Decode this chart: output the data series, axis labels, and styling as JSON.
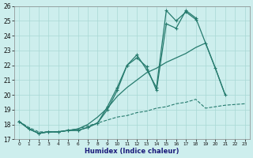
{
  "color": "#267b6e",
  "bg_color": "#cdeeed",
  "grid_color": "#a8d8d4",
  "xlabel": "Humidex (Indice chaleur)",
  "ylim": [
    17,
    26
  ],
  "xlim": [
    -0.5,
    23.5
  ],
  "yticks": [
    17,
    18,
    19,
    20,
    21,
    22,
    23,
    24,
    25,
    26
  ],
  "xticks": [
    0,
    1,
    2,
    3,
    4,
    5,
    6,
    7,
    8,
    9,
    10,
    11,
    12,
    13,
    14,
    15,
    16,
    17,
    18,
    19,
    20,
    21,
    22,
    23
  ],
  "s1_x": [
    0,
    1,
    2,
    3,
    4,
    5,
    6,
    7,
    8,
    9,
    10,
    11,
    12,
    13,
    14,
    15,
    16,
    17,
    18
  ],
  "s1_y": [
    18.2,
    17.7,
    17.4,
    17.5,
    17.5,
    17.6,
    17.6,
    17.8,
    18.1,
    19.2,
    20.5,
    22.0,
    22.7,
    21.7,
    20.5,
    25.7,
    25.0,
    25.6,
    25.1
  ],
  "s2_x": [
    0,
    1,
    2,
    3,
    4,
    5,
    6,
    7,
    8,
    9,
    10,
    11,
    12,
    13,
    14,
    15,
    16,
    17,
    18,
    19,
    20,
    21
  ],
  "s2_y": [
    18.2,
    17.7,
    17.4,
    17.5,
    17.5,
    17.6,
    17.6,
    17.8,
    18.1,
    19.0,
    20.3,
    22.0,
    22.5,
    21.9,
    20.3,
    24.8,
    24.5,
    25.7,
    25.2,
    23.5,
    21.8,
    20.0
  ],
  "s3_x": [
    0,
    1,
    2,
    3,
    4,
    5,
    6,
    7,
    8,
    9,
    10,
    11,
    12,
    13,
    14,
    15,
    16,
    17,
    18,
    19,
    20,
    21
  ],
  "s3_y": [
    18.2,
    17.7,
    17.4,
    17.5,
    17.5,
    17.6,
    17.7,
    18.0,
    18.5,
    19.1,
    19.9,
    20.5,
    21.0,
    21.5,
    21.8,
    22.2,
    22.5,
    22.8,
    23.2,
    23.5,
    21.8,
    20.0
  ],
  "s4_x": [
    0,
    1,
    2,
    3,
    4,
    5,
    6,
    7,
    8,
    9,
    10,
    11,
    12,
    13,
    14,
    15,
    16,
    17,
    18,
    19,
    20,
    21,
    22,
    23
  ],
  "s4_y": [
    18.2,
    17.8,
    17.5,
    17.5,
    17.5,
    17.6,
    17.7,
    17.9,
    18.1,
    18.3,
    18.5,
    18.6,
    18.8,
    18.9,
    19.1,
    19.2,
    19.4,
    19.5,
    19.7,
    19.1,
    19.2,
    19.3,
    19.35,
    19.4
  ]
}
